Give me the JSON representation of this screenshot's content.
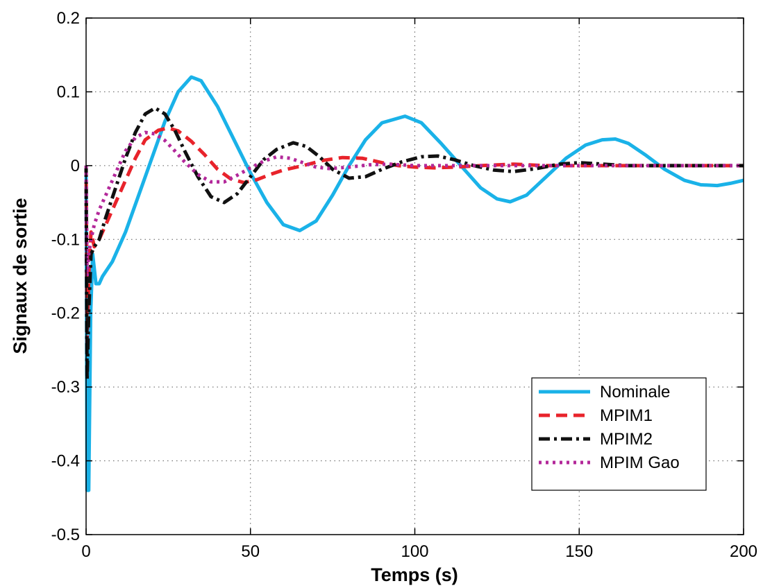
{
  "chart_data": {
    "type": "line",
    "title": "",
    "xlabel": "Temps (s)",
    "ylabel": "Signaux de sortie",
    "xlim": [
      0,
      200
    ],
    "ylim": [
      -0.5,
      0.2
    ],
    "xticks": [
      0,
      50,
      100,
      150,
      200
    ],
    "yticks": [
      0.2,
      0.1,
      0,
      -0.1,
      -0.2,
      -0.3,
      -0.4,
      -0.5
    ],
    "xtick_labels": [
      "0",
      "50",
      "100",
      "150",
      "200"
    ],
    "ytick_labels": [
      "0.2",
      "0.1",
      "0",
      "-0.1",
      "-0.2",
      "-0.3",
      "-0.4",
      "-0.5"
    ],
    "grid": true,
    "legend_position": "bottom-right",
    "series": [
      {
        "name": "Nominale",
        "color": "#1ab2e8",
        "dash": "solid",
        "points": [
          [
            0,
            0
          ],
          [
            0.3,
            -0.44
          ],
          [
            0.8,
            -0.44
          ],
          [
            1.4,
            -0.2
          ],
          [
            2,
            -0.12
          ],
          [
            3,
            -0.16
          ],
          [
            4,
            -0.16
          ],
          [
            5,
            -0.15
          ],
          [
            8,
            -0.13
          ],
          [
            12,
            -0.09
          ],
          [
            16,
            -0.04
          ],
          [
            20,
            0.01
          ],
          [
            24,
            0.06
          ],
          [
            28,
            0.1
          ],
          [
            32,
            0.12
          ],
          [
            35,
            0.115
          ],
          [
            40,
            0.08
          ],
          [
            45,
            0.035
          ],
          [
            50,
            -0.01
          ],
          [
            55,
            -0.05
          ],
          [
            60,
            -0.08
          ],
          [
            65,
            -0.088
          ],
          [
            70,
            -0.075
          ],
          [
            75,
            -0.04
          ],
          [
            80,
            0.0
          ],
          [
            85,
            0.035
          ],
          [
            90,
            0.058
          ],
          [
            97,
            0.067
          ],
          [
            102,
            0.058
          ],
          [
            108,
            0.03
          ],
          [
            114,
            0.0
          ],
          [
            120,
            -0.03
          ],
          [
            125,
            -0.045
          ],
          [
            129,
            -0.049
          ],
          [
            134,
            -0.04
          ],
          [
            140,
            -0.015
          ],
          [
            146,
            0.01
          ],
          [
            152,
            0.028
          ],
          [
            157,
            0.035
          ],
          [
            161,
            0.036
          ],
          [
            165,
            0.03
          ],
          [
            170,
            0.015
          ],
          [
            176,
            -0.005
          ],
          [
            182,
            -0.02
          ],
          [
            187,
            -0.026
          ],
          [
            192,
            -0.027
          ],
          [
            196,
            -0.024
          ],
          [
            200,
            -0.02
          ]
        ]
      },
      {
        "name": "MPIM1",
        "color": "#e8232b",
        "dash": "dashed",
        "points": [
          [
            0,
            0
          ],
          [
            0.3,
            -0.24
          ],
          [
            0.8,
            -0.15
          ],
          [
            1.5,
            -0.09
          ],
          [
            2.5,
            -0.11
          ],
          [
            4,
            -0.1
          ],
          [
            6,
            -0.08
          ],
          [
            9,
            -0.05
          ],
          [
            12,
            -0.02
          ],
          [
            15,
            0.01
          ],
          [
            18,
            0.035
          ],
          [
            22,
            0.048
          ],
          [
            25,
            0.051
          ],
          [
            28,
            0.047
          ],
          [
            32,
            0.033
          ],
          [
            36,
            0.015
          ],
          [
            40,
            -0.005
          ],
          [
            44,
            -0.018
          ],
          [
            48,
            -0.023
          ],
          [
            52,
            -0.019
          ],
          [
            56,
            -0.012
          ],
          [
            60,
            -0.006
          ],
          [
            66,
            0.0
          ],
          [
            72,
            0.007
          ],
          [
            78,
            0.011
          ],
          [
            84,
            0.01
          ],
          [
            90,
            0.004
          ],
          [
            95,
            0.0
          ],
          [
            100,
            -0.002
          ],
          [
            106,
            -0.003
          ],
          [
            112,
            -0.002
          ],
          [
            120,
            0.0
          ],
          [
            130,
            0.002
          ],
          [
            140,
            0.0
          ],
          [
            150,
            0.0
          ],
          [
            160,
            0.0
          ],
          [
            175,
            0.0
          ],
          [
            200,
            0.0
          ]
        ]
      },
      {
        "name": "MPIM2",
        "color": "#111111",
        "dash": "dashdot",
        "points": [
          [
            0,
            0
          ],
          [
            0.3,
            -0.29
          ],
          [
            0.8,
            -0.2
          ],
          [
            1.5,
            -0.12
          ],
          [
            2.5,
            -0.11
          ],
          [
            4,
            -0.1
          ],
          [
            6,
            -0.07
          ],
          [
            9,
            -0.03
          ],
          [
            12,
            0.01
          ],
          [
            15,
            0.045
          ],
          [
            18,
            0.07
          ],
          [
            21,
            0.078
          ],
          [
            24,
            0.07
          ],
          [
            27,
            0.048
          ],
          [
            30,
            0.02
          ],
          [
            34,
            -0.015
          ],
          [
            38,
            -0.042
          ],
          [
            42,
            -0.05
          ],
          [
            46,
            -0.038
          ],
          [
            50,
            -0.015
          ],
          [
            54,
            0.008
          ],
          [
            58,
            0.022
          ],
          [
            63,
            0.031
          ],
          [
            67,
            0.026
          ],
          [
            71,
            0.012
          ],
          [
            75,
            -0.005
          ],
          [
            80,
            -0.017
          ],
          [
            85,
            -0.015
          ],
          [
            90,
            -0.005
          ],
          [
            96,
            0.005
          ],
          [
            102,
            0.012
          ],
          [
            107,
            0.013
          ],
          [
            112,
            0.008
          ],
          [
            118,
            0.0
          ],
          [
            124,
            -0.006
          ],
          [
            130,
            -0.008
          ],
          [
            137,
            -0.004
          ],
          [
            144,
            0.002
          ],
          [
            150,
            0.004
          ],
          [
            157,
            0.002
          ],
          [
            165,
            0.0
          ],
          [
            180,
            0.0
          ],
          [
            200,
            0.0
          ]
        ]
      },
      {
        "name": "MPIM Gao",
        "color": "#b3289a",
        "dash": "dotted",
        "points": [
          [
            0,
            0
          ],
          [
            0.3,
            -0.15
          ],
          [
            0.8,
            -0.12
          ],
          [
            1.5,
            -0.1
          ],
          [
            2.5,
            -0.08
          ],
          [
            4,
            -0.06
          ],
          [
            6,
            -0.04
          ],
          [
            9,
            -0.01
          ],
          [
            12,
            0.02
          ],
          [
            15,
            0.038
          ],
          [
            18,
            0.045
          ],
          [
            21,
            0.043
          ],
          [
            24,
            0.034
          ],
          [
            27,
            0.02
          ],
          [
            30,
            0.005
          ],
          [
            34,
            -0.012
          ],
          [
            38,
            -0.022
          ],
          [
            42,
            -0.022
          ],
          [
            46,
            -0.013
          ],
          [
            50,
            -0.003
          ],
          [
            54,
            0.006
          ],
          [
            58,
            0.012
          ],
          [
            62,
            0.01
          ],
          [
            66,
            0.004
          ],
          [
            70,
            -0.002
          ],
          [
            74,
            -0.004
          ],
          [
            80,
            -0.002
          ],
          [
            86,
            0.001
          ],
          [
            92,
            0.002
          ],
          [
            100,
            0.0
          ],
          [
            110,
            0.0
          ],
          [
            130,
            0.0
          ],
          [
            200,
            0.0
          ]
        ]
      }
    ]
  }
}
